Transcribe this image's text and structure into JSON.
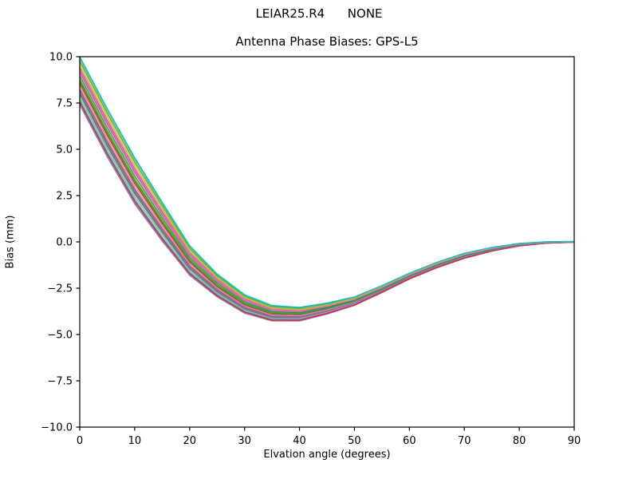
{
  "figure": {
    "background": "#ffffff",
    "frame_color": "#000000"
  },
  "chart_data": {
    "type": "line",
    "suptitle": "LEIAR25.R4      NONE",
    "title": "Antenna Phase Biases: GPS-L5",
    "xlabel": "Elvation angle (degrees)",
    "ylabel": "Bias (mm)",
    "xlim": [
      0,
      90
    ],
    "ylim": [
      -10,
      10
    ],
    "xticks": [
      0,
      10,
      20,
      30,
      40,
      50,
      60,
      70,
      80,
      90
    ],
    "yticks": [
      -10.0,
      -7.5,
      -5.0,
      -2.5,
      0.0,
      2.5,
      5.0,
      7.5,
      10.0
    ],
    "grid": false,
    "legend": "none",
    "x": [
      0,
      5,
      10,
      15,
      20,
      25,
      30,
      35,
      40,
      45,
      50,
      55,
      60,
      65,
      70,
      75,
      80,
      85,
      90
    ],
    "mean_bias_mm": [
      8.7,
      5.9,
      3.3,
      1.1,
      -1.0,
      -2.35,
      -3.35,
      -3.85,
      -3.9,
      -3.6,
      -3.2,
      -2.55,
      -1.85,
      -1.25,
      -0.75,
      -0.4,
      -0.15,
      -0.03,
      0.0
    ],
    "half_spread_mm": [
      1.3,
      1.3,
      1.25,
      1.05,
      0.8,
      0.62,
      0.5,
      0.42,
      0.37,
      0.3,
      0.23,
      0.19,
      0.16,
      0.15,
      0.14,
      0.1,
      0.07,
      0.04,
      0.02
    ],
    "series_offsets": [
      -1.0,
      -0.56,
      -0.12,
      0.32,
      0.76,
      -0.8,
      -0.36,
      0.08,
      0.52,
      0.96,
      -0.92,
      -0.48,
      -0.04,
      0.4,
      0.84,
      -0.68,
      -0.24,
      0.2,
      0.64,
      -0.88,
      -0.44,
      0.0,
      0.44,
      1.0
    ],
    "line_colors": [
      "#9467bd",
      "#2ca02c",
      "#d62728",
      "#e377c2",
      "#bcbd22",
      "#17becf",
      "#8c564b",
      "#66a61e",
      "#c2559e",
      "#4daf4a",
      "#8c8c8c",
      "#a05d56",
      "#6b8e23",
      "#c9366f",
      "#3cb371",
      "#9e9ac8",
      "#e07bb0",
      "#2e8b57",
      "#bcbd22",
      "#d62728",
      "#9467bd",
      "#2ca02c",
      "#e377c2",
      "#17becf"
    ]
  }
}
